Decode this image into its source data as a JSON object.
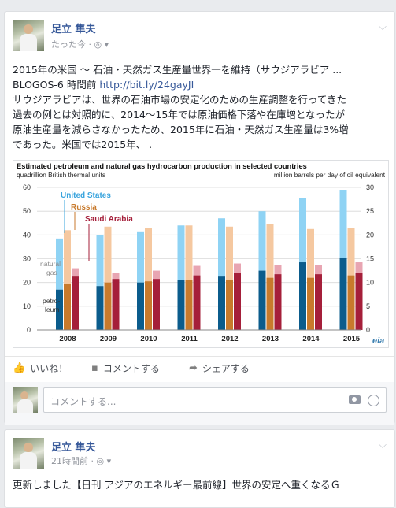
{
  "post1": {
    "author": "足立 隼夫",
    "time": "たった今 ·",
    "text_line1": "2015年の米国 〜 石油・天然ガス生産量世界一を維持（サウジアラビア ...",
    "source": "BLOGOS-6 時間前",
    "link": "http://bit.ly/24gayJI",
    "body_lines": [
      "サウジアラビアは、世界の石油市場の安定化のための生産調整を行ってきた",
      "過去の例とは対照的に、2014〜15年では原油価格下落や在庫増となったが",
      "原油生産量を減らさなかったため、2015年に石油・天然ガス生産量は3%増",
      "であった。米国では2015年、 ."
    ],
    "actions": {
      "like": "いいね！",
      "comment": "コメントする",
      "share": "シェアする"
    },
    "comment_placeholder": "コメントする..."
  },
  "post2": {
    "author": "足立 隼夫",
    "time": "21時間前 ·",
    "text": "更新しました【日刊 アジアのエネルギー最前線】世界の安定へ重くなるＧ"
  },
  "colors": {
    "us_natural_gas": "#8fd3f4",
    "us_petroleum": "#0b5c8c",
    "russia_natural_gas": "#f5c8a0",
    "russia_petroleum": "#c87a2c",
    "saudi_natural_gas": "#e8a5b2",
    "saudi_petroleum": "#a51f3a"
  },
  "chart_data": {
    "type": "bar",
    "title": "Estimated petroleum and natural gas hydrocarbon production in selected countries",
    "ylabel_left": "quadrillion British thermal units",
    "ylabel_right": "million barrels per day of oil equivalent",
    "categories": [
      "2008",
      "2009",
      "2010",
      "2011",
      "2012",
      "2013",
      "2014",
      "2015"
    ],
    "ylim_left": [
      0,
      60
    ],
    "ylim_right": [
      0,
      30
    ],
    "yticks_left": [
      0,
      10,
      20,
      30,
      40,
      50,
      60
    ],
    "yticks_right": [
      0,
      5,
      10,
      15,
      20,
      25,
      30
    ],
    "stack_labels": [
      "natural gas",
      "petro-leum"
    ],
    "series": [
      {
        "name": "United States",
        "petroleum": [
          17,
          18.5,
          20,
          21,
          22.5,
          25,
          28.5,
          30.5
        ],
        "total": [
          38.5,
          40,
          41.5,
          44,
          47,
          50,
          55.5,
          59
        ]
      },
      {
        "name": "Russia",
        "petroleum": [
          19.5,
          20,
          20.5,
          21,
          21,
          22,
          22,
          23
        ],
        "total": [
          42,
          43.5,
          43,
          44,
          43.5,
          44.5,
          42.5,
          43
        ]
      },
      {
        "name": "Saudi Arabia",
        "petroleum": [
          22.5,
          21.5,
          21.5,
          23,
          24,
          23.5,
          23.5,
          24
        ],
        "total": [
          26,
          24,
          25,
          27,
          28,
          27.5,
          27.5,
          28.5
        ]
      }
    ],
    "source_logo": "eia"
  }
}
